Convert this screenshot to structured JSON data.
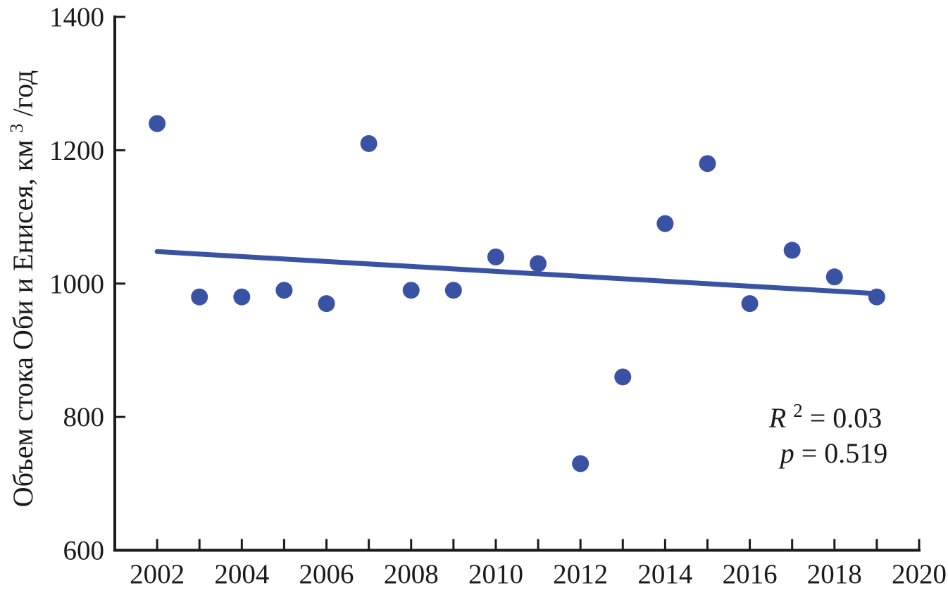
{
  "chart_data": {
    "type": "scatter",
    "title": "",
    "xlabel": "",
    "ylabel": "Объем стока Оби и Енисея, км³/год",
    "ylabel_parts": {
      "main": "Объем стока Оби и Енисея, км",
      "sup": "3",
      "rest": "/год"
    },
    "x": [
      2002,
      2003,
      2004,
      2005,
      2006,
      2007,
      2008,
      2009,
      2010,
      2011,
      2012,
      2013,
      2014,
      2015,
      2016,
      2017,
      2018,
      2019
    ],
    "values": [
      1240,
      980,
      980,
      990,
      970,
      1210,
      990,
      990,
      1040,
      1030,
      730,
      860,
      1090,
      1180,
      970,
      1050,
      1010,
      980
    ],
    "trendline": {
      "x1": 2002,
      "y1": 1048,
      "x2": 2019,
      "y2": 985
    },
    "annotation": {
      "r2_var": "R",
      "r2_sup": "2",
      "r2_rest": " = 0.03",
      "p_var": "p",
      "p_rest": " = 0.519"
    },
    "xlim": [
      2001,
      2020
    ],
    "ylim": [
      600,
      1400
    ],
    "xticks": [
      2002,
      2003,
      2004,
      2005,
      2006,
      2007,
      2008,
      2009,
      2010,
      2011,
      2012,
      2013,
      2014,
      2015,
      2016,
      2017,
      2018,
      2019,
      2020
    ],
    "xtick_labels": [
      "2002",
      "2004",
      "2006",
      "2008",
      "2010",
      "2012",
      "2014",
      "2016",
      "2018",
      "2020"
    ],
    "xtick_label_years": [
      2002,
      2004,
      2006,
      2008,
      2010,
      2012,
      2014,
      2016,
      2018,
      2020
    ],
    "yticks": [
      600,
      800,
      1000,
      1200,
      1400
    ],
    "ytick_labels": [
      "600",
      "800",
      "1000",
      "1200",
      "1400"
    ],
    "grid": false,
    "legend": "none",
    "marker_radius_px": 12,
    "colors": {
      "marker": "#3a52a4",
      "trend": "#3a52a4",
      "axis": "#1a1a1a",
      "background": "#ffffff"
    }
  }
}
